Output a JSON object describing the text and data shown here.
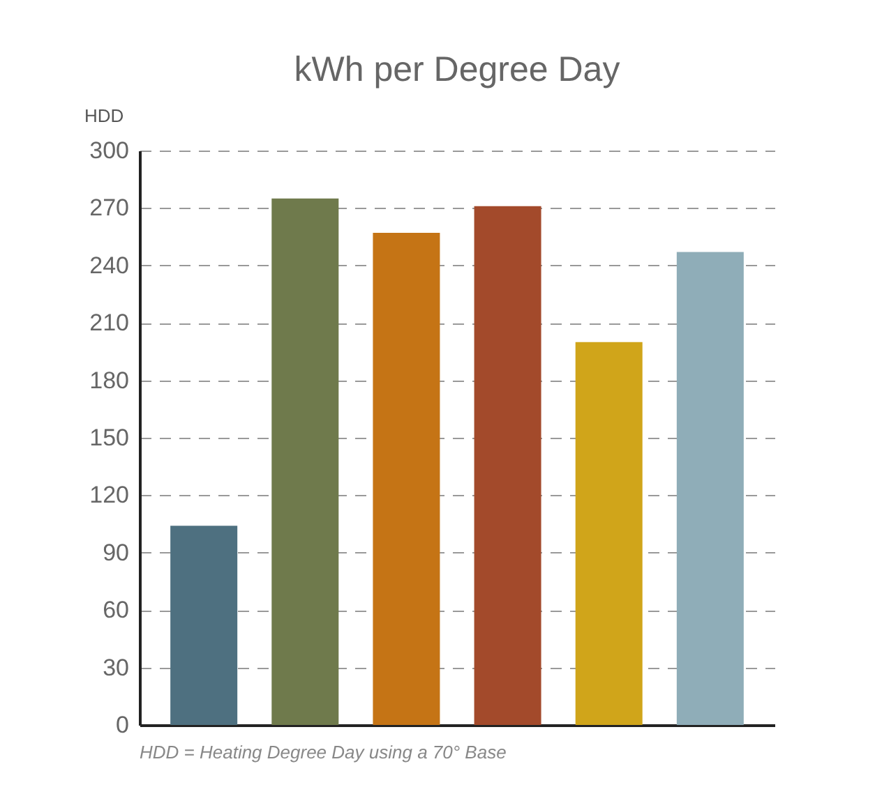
{
  "chart_data": {
    "type": "bar",
    "title": "kWh per Degree Day",
    "ylabel": "HDD",
    "categories": [
      null,
      null,
      null,
      null,
      null,
      null
    ],
    "values": [
      104,
      275,
      257,
      271,
      200,
      247
    ],
    "colors": [
      "#4e7080",
      "#6f7a4c",
      "#c57415",
      "#a34a2b",
      "#d0a51a",
      "#8fadb8"
    ],
    "ylim": [
      0,
      300
    ],
    "yticks": [
      0,
      30,
      60,
      90,
      120,
      150,
      180,
      210,
      240,
      270,
      300
    ],
    "grid": "y",
    "tick_labels": "y",
    "annotations": [
      "HDD = Heating Degree Day using a 70° Base"
    ]
  }
}
